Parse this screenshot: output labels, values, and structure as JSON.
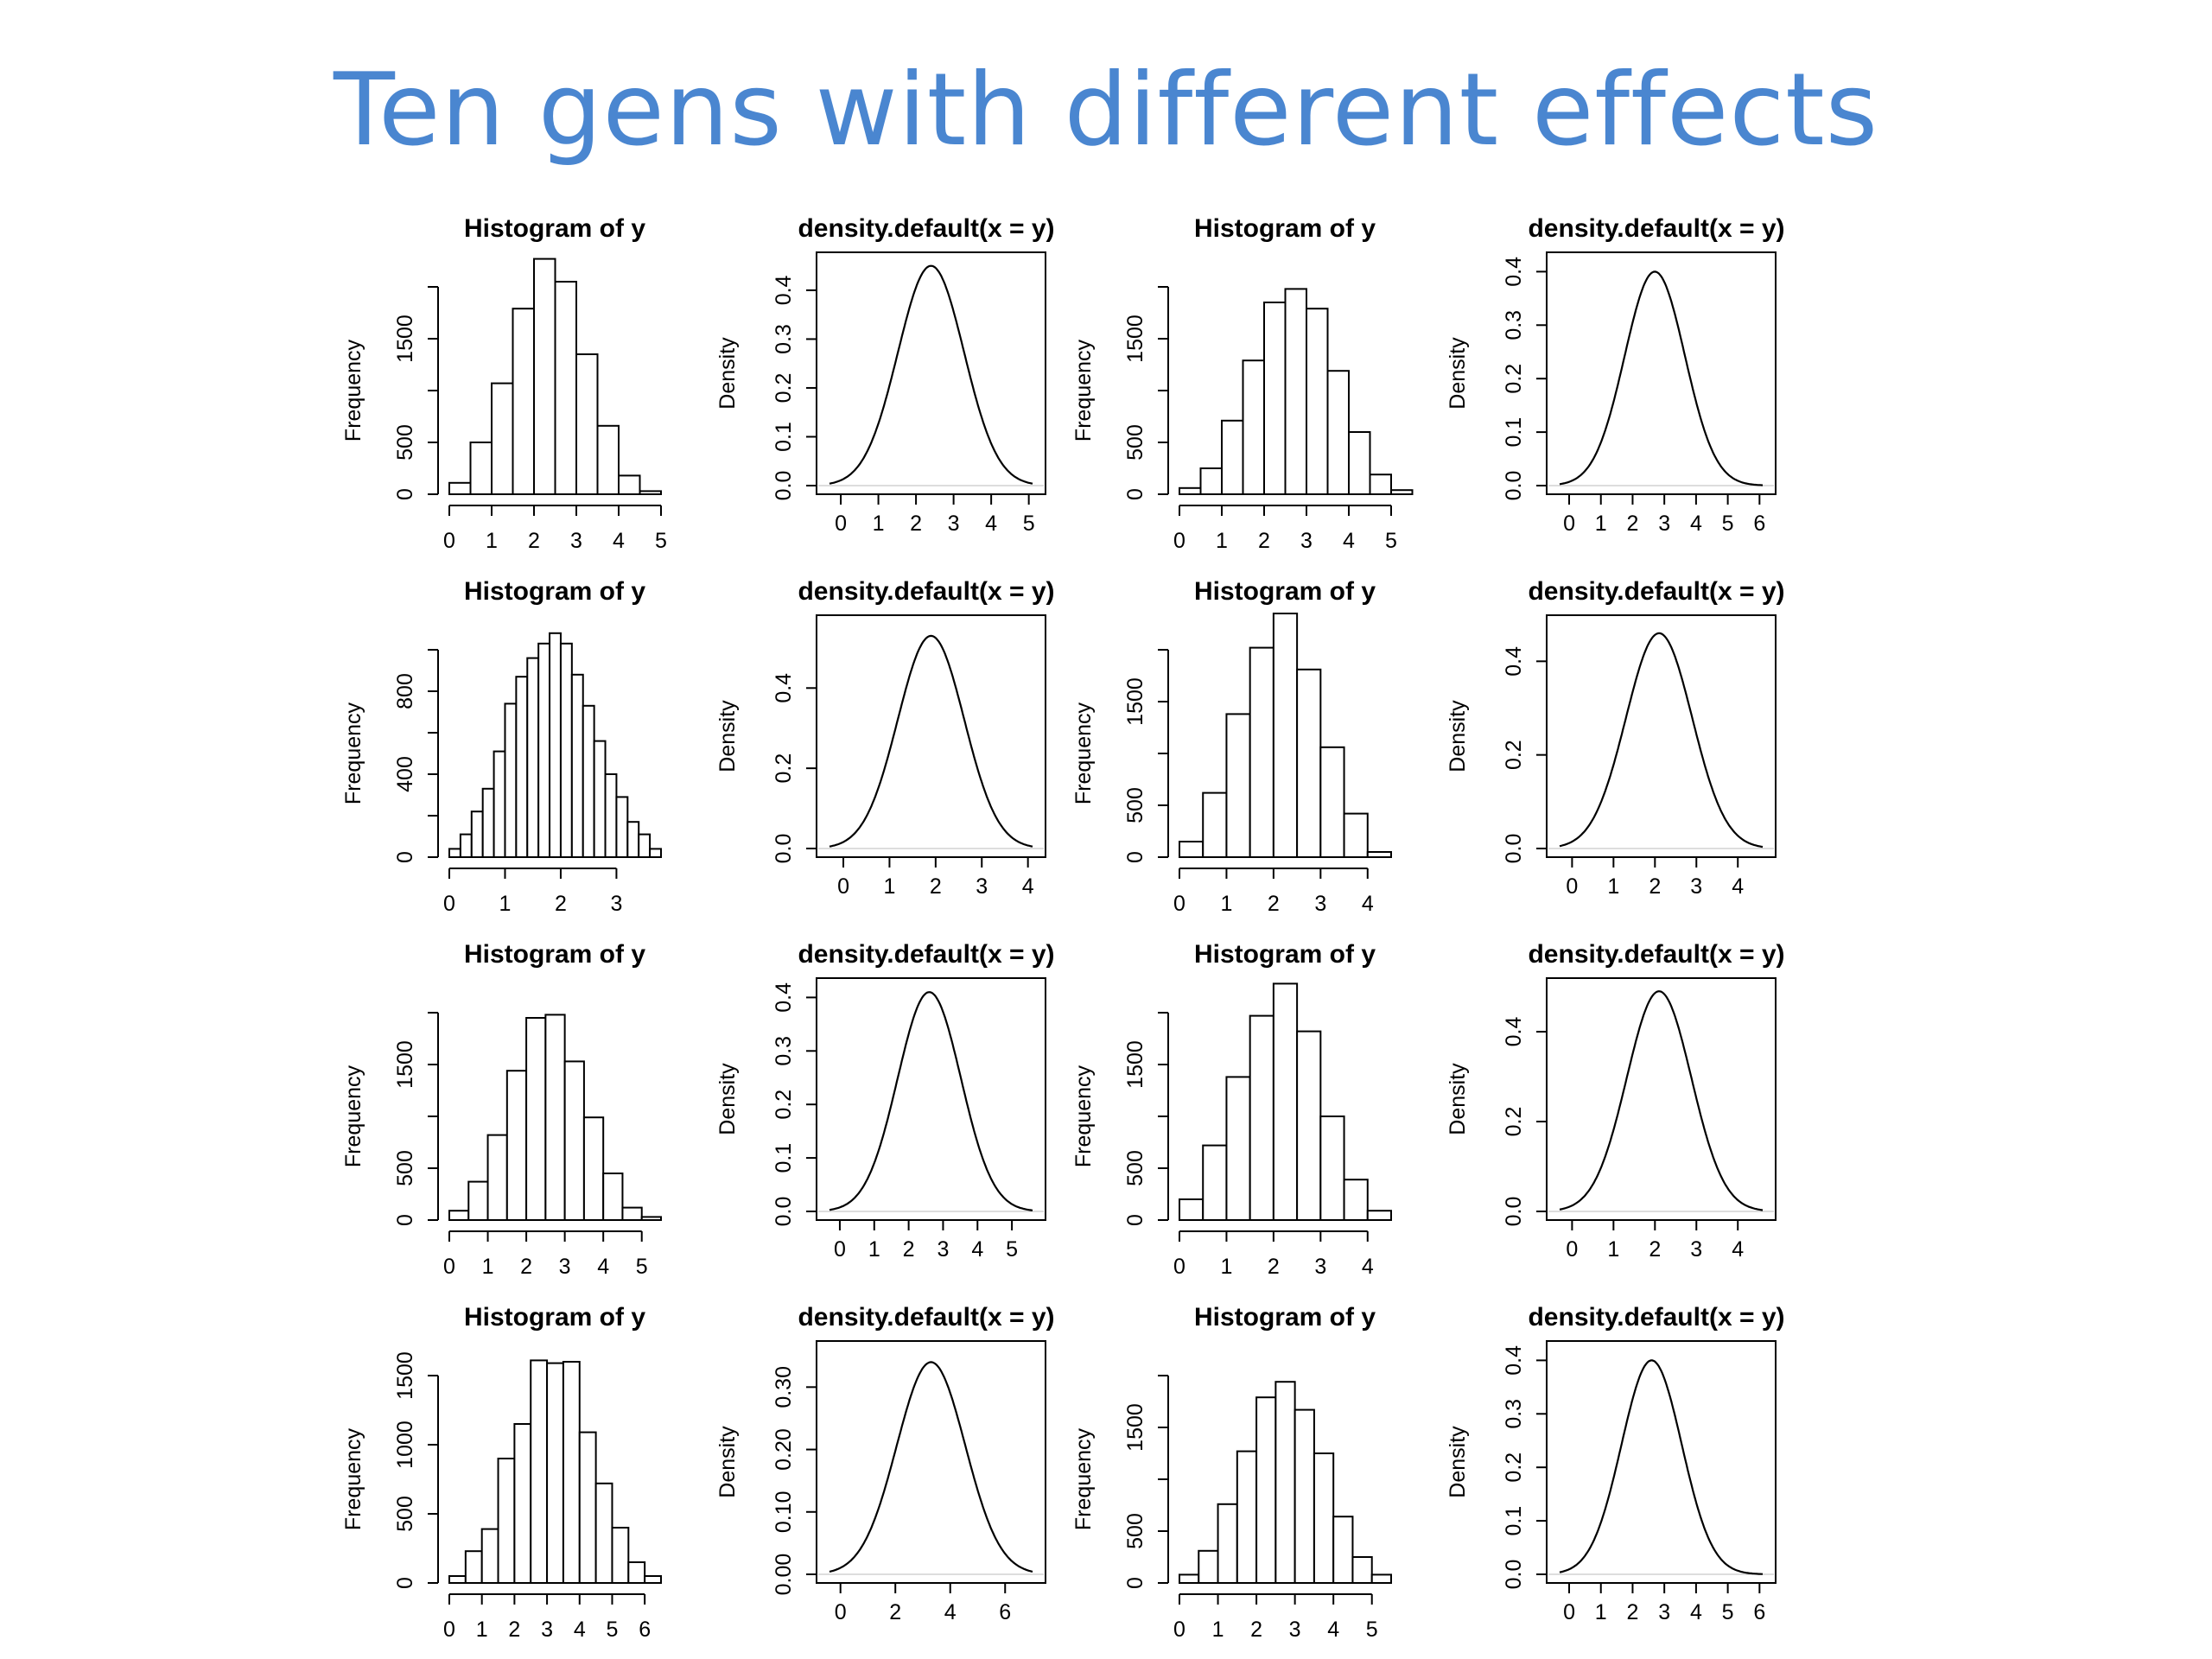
{
  "slide": {
    "title": "Ten gens with different effects"
  },
  "chart_data": [
    {
      "type": "bar",
      "title": "Histogram of y",
      "xlabel": "",
      "ylabel": "Frequency",
      "xlim": [
        0,
        5
      ],
      "xticks": [
        0,
        1,
        2,
        3,
        4,
        5
      ],
      "yticks": [
        0,
        500,
        1500
      ],
      "yaxis_top": 2000,
      "bin_width": 0.5,
      "bin_start": 0,
      "values": [
        110,
        500,
        1070,
        1790,
        2270,
        2050,
        1350,
        660,
        180,
        30
      ]
    },
    {
      "type": "line",
      "title": "density.default(x = y)",
      "xlabel": "",
      "ylabel": "Density",
      "xlim": [
        -0.3,
        5.1
      ],
      "ylim": [
        0,
        0.46
      ],
      "xticks": [
        0,
        1,
        2,
        3,
        4,
        5
      ],
      "yticks": [
        "0.0",
        "0.1",
        "0.2",
        "0.3",
        "0.4"
      ],
      "ytick_values": [
        0,
        0.1,
        0.2,
        0.3,
        0.4
      ],
      "peak_x": 2.4,
      "peak_y": 0.45,
      "sd": 0.88
    },
    {
      "type": "bar",
      "title": "Histogram of y",
      "xlabel": "",
      "ylabel": "Frequency",
      "xlim": [
        0,
        5
      ],
      "xticks": [
        0,
        1,
        2,
        3,
        4,
        5
      ],
      "yticks": [
        0,
        500,
        1500
      ],
      "yaxis_top": 2000,
      "bin_width": 0.5,
      "bin_start": 0,
      "values": [
        60,
        250,
        710,
        1290,
        1850,
        1980,
        1790,
        1190,
        600,
        190,
        40
      ]
    },
    {
      "type": "line",
      "title": "density.default(x = y)",
      "xlabel": "",
      "ylabel": "Density",
      "xlim": [
        -0.3,
        6.1
      ],
      "ylim": [
        0,
        0.42
      ],
      "xticks": [
        0,
        1,
        2,
        3,
        4,
        5,
        6
      ],
      "yticks": [
        "0.0",
        "0.1",
        "0.2",
        "0.3",
        "0.4"
      ],
      "ytick_values": [
        0,
        0.1,
        0.2,
        0.3,
        0.4
      ],
      "peak_x": 2.7,
      "peak_y": 0.4,
      "sd": 0.95
    },
    {
      "type": "bar",
      "title": "Histogram of y",
      "xlabel": "",
      "ylabel": "Frequency",
      "xlim": [
        0,
        3.8
      ],
      "xticks": [
        0,
        1,
        2,
        3
      ],
      "yticks": [
        0,
        400,
        800
      ],
      "yaxis_top": 1000,
      "bin_width": 0.2,
      "bin_start": 0,
      "values": [
        40,
        110,
        220,
        330,
        510,
        740,
        870,
        960,
        1030,
        1080,
        1030,
        880,
        730,
        560,
        400,
        290,
        170,
        110,
        40
      ]
    },
    {
      "type": "line",
      "title": "density.default(x = y)",
      "xlabel": "",
      "ylabel": "Density",
      "xlim": [
        -0.3,
        4.1
      ],
      "ylim": [
        0,
        0.56
      ],
      "xticks": [
        0,
        1,
        2,
        3,
        4
      ],
      "yticks": [
        "0.0",
        "0.2",
        "0.4"
      ],
      "ytick_values": [
        0,
        0.2,
        0.4
      ],
      "peak_x": 1.9,
      "peak_y": 0.53,
      "sd": 0.72
    },
    {
      "type": "bar",
      "title": "Histogram of y",
      "xlabel": "",
      "ylabel": "Frequency",
      "xlim": [
        0,
        4.5
      ],
      "xticks": [
        0,
        1,
        2,
        3,
        4
      ],
      "yticks": [
        0,
        500,
        1500
      ],
      "yaxis_top": 2000,
      "bin_width": 0.5,
      "bin_start": 0,
      "values": [
        150,
        620,
        1380,
        2020,
        2350,
        1810,
        1060,
        420,
        50
      ]
    },
    {
      "type": "line",
      "title": "density.default(x = y)",
      "xlabel": "",
      "ylabel": "Density",
      "xlim": [
        -0.3,
        4.6
      ],
      "ylim": [
        0,
        0.48
      ],
      "xticks": [
        0,
        1,
        2,
        3,
        4
      ],
      "yticks": [
        "0.0",
        "0.2",
        "0.4"
      ],
      "ytick_values": [
        0,
        0.2,
        0.4
      ],
      "peak_x": 2.1,
      "peak_y": 0.46,
      "sd": 0.8
    },
    {
      "type": "bar",
      "title": "Histogram of y",
      "xlabel": "",
      "ylabel": "Frequency",
      "xlim": [
        0,
        5.5
      ],
      "xticks": [
        0,
        1,
        2,
        3,
        4,
        5
      ],
      "yticks": [
        0,
        500,
        1500
      ],
      "yaxis_top": 2000,
      "bin_width": 0.5,
      "bin_start": 0,
      "values": [
        90,
        370,
        820,
        1440,
        1950,
        1980,
        1530,
        990,
        450,
        120,
        30
      ]
    },
    {
      "type": "line",
      "title": "density.default(x = y)",
      "xlabel": "",
      "ylabel": "Density",
      "xlim": [
        -0.3,
        5.6
      ],
      "ylim": [
        0,
        0.42
      ],
      "xticks": [
        0,
        1,
        2,
        3,
        4,
        5
      ],
      "yticks": [
        "0.0",
        "0.1",
        "0.2",
        "0.3",
        "0.4"
      ],
      "ytick_values": [
        0,
        0.1,
        0.2,
        0.3,
        0.4
      ],
      "peak_x": 2.6,
      "peak_y": 0.41,
      "sd": 0.92
    },
    {
      "type": "bar",
      "title": "Histogram of y",
      "xlabel": "",
      "ylabel": "Frequency",
      "xlim": [
        0,
        4.5
      ],
      "xticks": [
        0,
        1,
        2,
        3,
        4
      ],
      "yticks": [
        0,
        500,
        1500
      ],
      "yaxis_top": 2000,
      "bin_width": 0.5,
      "bin_start": 0,
      "values": [
        200,
        720,
        1380,
        1970,
        2280,
        1820,
        1000,
        390,
        90
      ]
    },
    {
      "type": "line",
      "title": "density.default(x = y)",
      "xlabel": "",
      "ylabel": "Density",
      "xlim": [
        -0.3,
        4.6
      ],
      "ylim": [
        0,
        0.5
      ],
      "xticks": [
        0,
        1,
        2,
        3,
        4
      ],
      "yticks": [
        "0.0",
        "0.2",
        "0.4"
      ],
      "ytick_values": [
        0,
        0.2,
        0.4
      ],
      "peak_x": 2.1,
      "peak_y": 0.49,
      "sd": 0.78
    },
    {
      "type": "bar",
      "title": "Histogram of y",
      "xlabel": "",
      "ylabel": "Frequency",
      "xlim": [
        0,
        6.5
      ],
      "xticks": [
        0,
        1,
        2,
        3,
        4,
        5,
        6
      ],
      "yticks": [
        0,
        500,
        1000,
        1500
      ],
      "yaxis_top": 1500,
      "bin_width": 0.5,
      "bin_start": 0,
      "values": [
        50,
        230,
        390,
        900,
        1150,
        1610,
        1590,
        1600,
        1090,
        720,
        400,
        150,
        50
      ]
    },
    {
      "type": "line",
      "title": "density.default(x = y)",
      "xlabel": "",
      "ylabel": "Density",
      "xlim": [
        -0.4,
        7
      ],
      "ylim": [
        0,
        0.36
      ],
      "xticks": [
        0,
        2,
        4,
        6
      ],
      "yticks": [
        "0.00",
        "0.10",
        "0.20",
        "0.30"
      ],
      "ytick_values": [
        0,
        0.1,
        0.2,
        0.3
      ],
      "peak_x": 3.3,
      "peak_y": 0.34,
      "sd": 1.25
    },
    {
      "type": "bar",
      "title": "Histogram of y",
      "xlabel": "",
      "ylabel": "Frequency",
      "xlim": [
        0,
        5.5
      ],
      "xticks": [
        0,
        1,
        2,
        3,
        4,
        5
      ],
      "yticks": [
        0,
        500,
        1500
      ],
      "yaxis_top": 2000,
      "bin_width": 0.5,
      "bin_start": 0,
      "values": [
        80,
        310,
        760,
        1270,
        1790,
        1940,
        1670,
        1250,
        640,
        250,
        80
      ]
    },
    {
      "type": "line",
      "title": "density.default(x = y)",
      "xlabel": "",
      "ylabel": "Density",
      "xlim": [
        -0.3,
        6.1
      ],
      "ylim": [
        0,
        0.42
      ],
      "xticks": [
        0,
        1,
        2,
        3,
        4,
        5,
        6
      ],
      "yticks": [
        "0.0",
        "0.1",
        "0.2",
        "0.3",
        "0.4"
      ],
      "ytick_values": [
        0,
        0.1,
        0.2,
        0.3,
        0.4
      ],
      "peak_x": 2.6,
      "peak_y": 0.4,
      "sd": 0.95
    }
  ]
}
